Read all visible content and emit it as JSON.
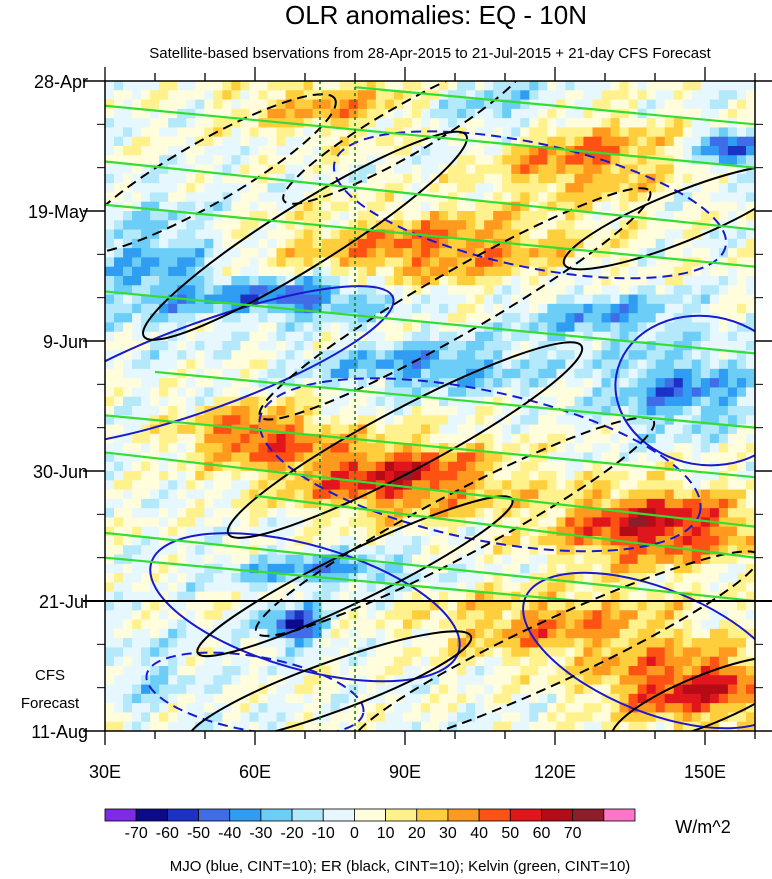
{
  "chart_data": {
    "type": "heatmap",
    "title": "OLR anomalies: EQ - 10N",
    "subtitle": "Satellite-based bservations from 28-Apr-2015 to 21-Jul-2015 + 21-day CFS Forecast",
    "x_ticks": [
      {
        "value": 30,
        "label": "30E"
      },
      {
        "value": 60,
        "label": "60E"
      },
      {
        "value": 90,
        "label": "90E"
      },
      {
        "value": 120,
        "label": "120E"
      },
      {
        "value": 150,
        "label": "150E"
      }
    ],
    "xlim": [
      30,
      160
    ],
    "y_ticks": [
      {
        "day": 0,
        "label": "28-Apr"
      },
      {
        "day": 21,
        "label": "19-May"
      },
      {
        "day": 42,
        "label": "9-Jun"
      },
      {
        "day": 63,
        "label": "30-Jun"
      },
      {
        "day": 84,
        "label": "21-Jul"
      },
      {
        "day": 105,
        "label": "11-Aug"
      }
    ],
    "ylim_days": [
      0,
      105
    ],
    "forecast_start_day": 84,
    "forecast_label_line1": "CFS",
    "forecast_label_line2": "Forecast",
    "reference_longitudes": [
      73,
      80
    ],
    "colorbar": {
      "levels": [
        -70,
        -60,
        -50,
        -40,
        -30,
        -20,
        -10,
        0,
        10,
        20,
        30,
        40,
        50,
        60,
        70
      ],
      "colors": [
        "#7f2ae6",
        "#0b0a8c",
        "#1c31c5",
        "#3f6de8",
        "#2e9df2",
        "#6ccef7",
        "#b4e8fb",
        "#e6f7fe",
        "#fffddb",
        "#fff28c",
        "#ffce3c",
        "#ff9a1e",
        "#fe5114",
        "#e0161c",
        "#b40b16",
        "#8e1d2a",
        "#ff75c8"
      ],
      "units": "W/m^2"
    },
    "footer": "MJO (blue, CINT=10); ER (black, CINT=10); Kelvin (green, CINT=10)",
    "anomaly_features": [
      {
        "lon": 88,
        "day": 64,
        "value": 55,
        "spread_lon": 22,
        "spread_day": 6
      },
      {
        "lon": 60,
        "day": 57,
        "value": 45,
        "spread_lon": 14,
        "spread_day": 5
      },
      {
        "lon": 140,
        "day": 72,
        "value": 60,
        "spread_lon": 20,
        "spread_day": 6
      },
      {
        "lon": 148,
        "day": 98,
        "value": 55,
        "spread_lon": 18,
        "spread_day": 6
      },
      {
        "lon": 95,
        "day": 27,
        "value": 40,
        "spread_lon": 28,
        "spread_day": 6
      },
      {
        "lon": 125,
        "day": 12,
        "value": 40,
        "spread_lon": 18,
        "spread_day": 7
      },
      {
        "lon": 120,
        "day": 88,
        "value": 35,
        "spread_lon": 25,
        "spread_day": 6
      },
      {
        "lon": 75,
        "day": 4,
        "value": 30,
        "spread_lon": 18,
        "spread_day": 5
      },
      {
        "lon": 68,
        "day": 35,
        "value": -50,
        "spread_lon": 18,
        "spread_day": 3
      },
      {
        "lon": 68,
        "day": 88,
        "value": -60,
        "spread_lon": 6,
        "spread_day": 3
      },
      {
        "lon": 155,
        "day": 11,
        "value": -55,
        "spread_lon": 6,
        "spread_day": 3
      },
      {
        "lon": 145,
        "day": 50,
        "value": -40,
        "spread_lon": 14,
        "spread_day": 6
      },
      {
        "lon": 95,
        "day": 46,
        "value": -35,
        "spread_lon": 22,
        "spread_day": 4
      },
      {
        "lon": 40,
        "day": 30,
        "value": -30,
        "spread_lon": 12,
        "spread_day": 10
      },
      {
        "lon": 75,
        "day": 79,
        "value": -35,
        "spread_lon": 20,
        "spread_day": 2.5
      },
      {
        "lon": 110,
        "day": 5,
        "value": -25,
        "spread_lon": 15,
        "spread_day": 5
      },
      {
        "lon": 130,
        "day": 38,
        "value": -30,
        "spread_lon": 18,
        "spread_day": 4
      },
      {
        "lon": 40,
        "day": 96,
        "value": -15,
        "spread_lon": 10,
        "spread_day": 6
      }
    ],
    "mjo_contours": [
      {
        "cx": 50,
        "cy": 46,
        "rx": 40,
        "ry": 7,
        "angle": -20,
        "dashed": false
      },
      {
        "cx": 70,
        "cy": 85,
        "rx": 32,
        "ry": 10,
        "angle": 16,
        "dashed": false
      },
      {
        "cx": 140,
        "cy": 92,
        "rx": 28,
        "ry": 10,
        "angle": 22,
        "dashed": false
      },
      {
        "cx": 115,
        "cy": 20,
        "rx": 40,
        "ry": 10,
        "angle": 12,
        "dashed": true
      },
      {
        "cx": 105,
        "cy": 62,
        "rx": 45,
        "ry": 12,
        "angle": 12,
        "dashed": true
      },
      {
        "cx": 60,
        "cy": 99,
        "rx": 22,
        "ry": 6,
        "angle": 10,
        "dashed": true
      },
      {
        "cx": 150,
        "cy": 50,
        "rx": 18,
        "ry": 12,
        "angle": 10,
        "dashed": false
      }
    ],
    "er_contours": [
      {
        "cx": 50,
        "cy": 15,
        "rx": 30,
        "ry": 5,
        "angle": -30,
        "dashed": true
      },
      {
        "cx": 70,
        "cy": 25,
        "rx": 38,
        "ry": 5,
        "angle": -32,
        "dashed": false
      },
      {
        "cx": 100,
        "cy": 36,
        "rx": 45,
        "ry": 5,
        "angle": -30,
        "dashed": true
      },
      {
        "cx": 90,
        "cy": 58,
        "rx": 40,
        "ry": 5,
        "angle": -28,
        "dashed": false
      },
      {
        "cx": 100,
        "cy": 72,
        "rx": 45,
        "ry": 5,
        "angle": -28,
        "dashed": true
      },
      {
        "cx": 80,
        "cy": 80,
        "rx": 35,
        "ry": 4,
        "angle": -26,
        "dashed": false
      },
      {
        "cx": 120,
        "cy": 92,
        "rx": 45,
        "ry": 5,
        "angle": -25,
        "dashed": true
      },
      {
        "cx": 145,
        "cy": 22,
        "rx": 25,
        "ry": 4,
        "angle": -22,
        "dashed": false
      },
      {
        "cx": 75,
        "cy": 98,
        "rx": 30,
        "ry": 4,
        "angle": -20,
        "dashed": false
      },
      {
        "cx": 150,
        "cy": 100,
        "rx": 20,
        "ry": 4,
        "angle": -22,
        "dashed": false
      },
      {
        "cx": 90,
        "cy": 8,
        "rx": 28,
        "ry": 4,
        "angle": -30,
        "dashed": true
      }
    ],
    "kelvin_lines": [
      {
        "lon0": 30,
        "day0": 4,
        "lon1": 160,
        "day1": 14
      },
      {
        "lon0": 30,
        "day0": 13,
        "lon1": 160,
        "day1": 24
      },
      {
        "lon0": 30,
        "day0": 20,
        "lon1": 160,
        "day1": 30
      },
      {
        "lon0": 30,
        "day0": 34,
        "lon1": 160,
        "day1": 44
      },
      {
        "lon0": 40,
        "day0": 47,
        "lon1": 160,
        "day1": 56
      },
      {
        "lon0": 30,
        "day0": 54,
        "lon1": 160,
        "day1": 64
      },
      {
        "lon0": 30,
        "day0": 60,
        "lon1": 160,
        "day1": 72
      },
      {
        "lon0": 60,
        "day0": 67,
        "lon1": 160,
        "day1": 77
      },
      {
        "lon0": 30,
        "day0": 73,
        "lon1": 160,
        "day1": 84
      },
      {
        "lon0": 30,
        "day0": 77,
        "lon1": 125,
        "day1": 84
      },
      {
        "lon0": 80,
        "day0": 1,
        "lon1": 160,
        "day1": 7
      }
    ]
  }
}
